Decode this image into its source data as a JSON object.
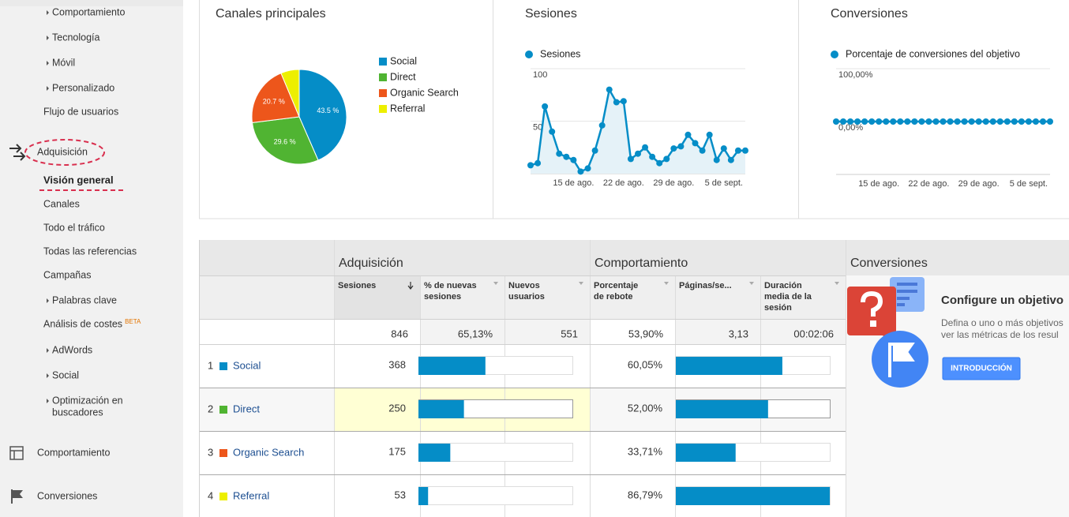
{
  "nav": [
    {
      "text": "Comportamiento",
      "kind": "submenu"
    },
    {
      "text": "Tecnología",
      "kind": "submenu"
    },
    {
      "text": "Móvil",
      "kind": "submenu"
    },
    {
      "text": "Personalizado",
      "kind": "submenu"
    },
    {
      "text": "Flujo de usuarios",
      "kind": "link"
    },
    {
      "text": "Adquisición",
      "kind": "section"
    },
    {
      "text": "Visión general",
      "kind": "active"
    },
    {
      "text": "Canales",
      "kind": "link"
    },
    {
      "text": "Todo el tráfico",
      "kind": "link"
    },
    {
      "text": "Todas las referencias",
      "kind": "link"
    },
    {
      "text": "Campañas",
      "kind": "link"
    },
    {
      "text": "Palabras clave",
      "kind": "submenu"
    },
    {
      "text": "Análisis de costes",
      "badge": "BETA",
      "kind": "link"
    },
    {
      "text": "AdWords",
      "kind": "submenu"
    },
    {
      "text": "Social",
      "kind": "submenu"
    },
    {
      "lines": [
        "Optimización en",
        "buscadores"
      ],
      "kind": "submenu"
    },
    {
      "text": "Comportamiento",
      "kind": "section"
    },
    {
      "text": "Conversiones",
      "kind": "section"
    }
  ],
  "chart_data": [
    {
      "type": "pie",
      "title": "Canales principales",
      "categories": [
        "Social",
        "Direct",
        "Organic Search",
        "Referral"
      ],
      "values": [
        43.5,
        29.6,
        20.7,
        6.3
      ],
      "value_labels": [
        "43.5 %",
        "29.6 %",
        "20.7 %",
        null
      ],
      "colors": [
        "#058dc7",
        "#50b432",
        "#ed561b",
        "#edef00"
      ]
    },
    {
      "type": "line",
      "title": "Sesiones",
      "categories": [
        null,
        null,
        null,
        null,
        null,
        null,
        "15 de ago.",
        null,
        null,
        null,
        null,
        null,
        null,
        "22 de ago.",
        null,
        null,
        null,
        null,
        null,
        null,
        "29 de ago.",
        null,
        null,
        null,
        null,
        null,
        null,
        "5 de sept.",
        null,
        null,
        null
      ],
      "series": [
        {
          "name": "Sesiones",
          "color": "#058dc7",
          "area": true,
          "values": [
            8,
            10,
            64,
            40,
            19,
            16,
            13,
            2,
            5,
            22,
            46,
            80,
            68,
            69,
            14,
            19,
            25,
            16,
            10,
            14,
            24,
            26,
            37,
            29,
            22,
            37,
            13,
            24,
            13,
            22,
            22
          ]
        }
      ],
      "ylim": [
        0,
        100
      ],
      "yticks": [
        50,
        100
      ],
      "grid": true
    },
    {
      "type": "line",
      "title": "Conversiones",
      "categories": [
        null,
        null,
        null,
        null,
        null,
        null,
        "15 de ago.",
        null,
        null,
        null,
        null,
        null,
        null,
        "22 de ago.",
        null,
        null,
        null,
        null,
        null,
        null,
        "29 de ago.",
        null,
        null,
        null,
        null,
        null,
        null,
        "5 de sept.",
        null,
        null,
        null
      ],
      "series": [
        {
          "name": "Porcentaje de conversiones del objetivo",
          "color": "#058dc7",
          "area": false,
          "values": [
            0,
            0,
            0,
            0,
            0,
            0,
            0,
            0,
            0,
            0,
            0,
            0,
            0,
            0,
            0,
            0,
            0,
            0,
            0,
            0,
            0,
            0,
            0,
            0,
            0,
            0,
            0,
            0,
            0,
            0,
            0
          ]
        }
      ],
      "ylim": [
        -100,
        100
      ],
      "yticks": [
        {
          "value": 0,
          "label": "0,00%"
        },
        {
          "value": 100,
          "label": "100,00%"
        }
      ],
      "grid": true
    }
  ],
  "table": {
    "groups": [
      "Adquisición",
      "Comportamiento",
      "Conversiones"
    ],
    "columns": [
      [
        "Sesiones"
      ],
      [
        "% de nuevas",
        "sesiones"
      ],
      [
        "Nuevos",
        "usuarios"
      ],
      [
        "Porcentaje",
        "de rebote"
      ],
      [
        "Páginas/se..."
      ],
      [
        "Duración",
        "media de la",
        "sesión"
      ]
    ],
    "totals": [
      846,
      "65,13%",
      551,
      "53,90%",
      "3,13",
      "00:02:06"
    ],
    "bar_color": "#058dc7",
    "rows": [
      {
        "rank": 1,
        "name": "Social",
        "color": "#058dc7",
        "sessions": 368,
        "bounce_rate": {
          "value": 60.05,
          "label": "60,05%"
        }
      },
      {
        "rank": 2,
        "name": "Direct",
        "color": "#50b432",
        "sessions": 250,
        "bounce_rate": {
          "value": 52.0,
          "label": "52,00%"
        }
      },
      {
        "rank": 3,
        "name": "Organic Search",
        "color": "#ed561b",
        "sessions": 175,
        "bounce_rate": {
          "value": 33.71,
          "label": "33,71%"
        }
      },
      {
        "rank": 4,
        "name": "Referral",
        "color": "#edef00",
        "sessions": 53,
        "bounce_rate": {
          "value": 86.79,
          "label": "86,79%"
        }
      }
    ]
  },
  "goal": {
    "title": "Configure un objetivo",
    "text": [
      "Defina o uno o más objetivos",
      "ver las métricas de los resul"
    ],
    "button": "INTRODUCCIÓN"
  }
}
